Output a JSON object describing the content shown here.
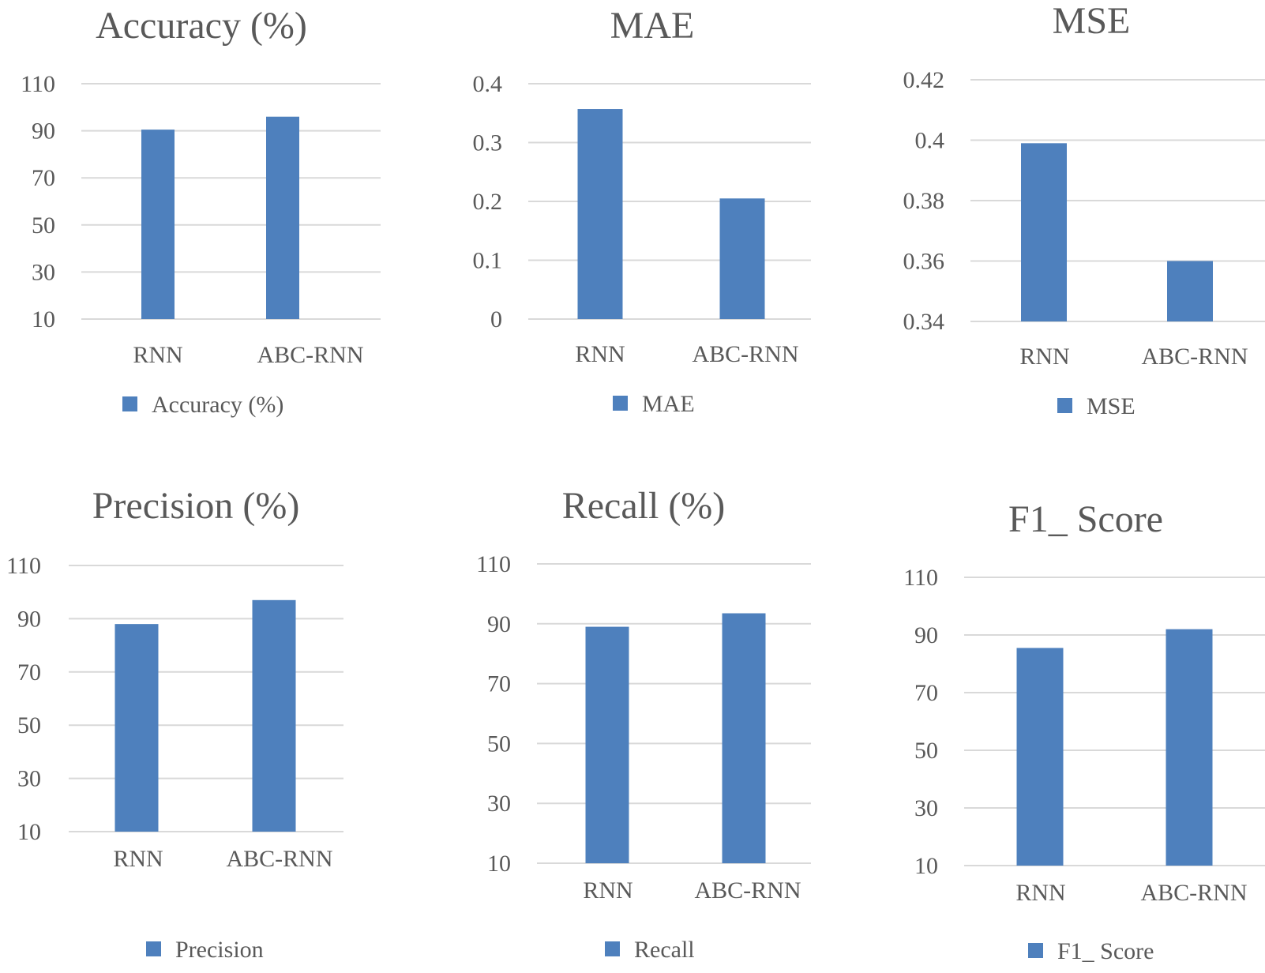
{
  "colors": {
    "bar": "#4e80bd",
    "grid": "#d9d9d9",
    "text": "#595959"
  },
  "chart_data": [
    {
      "type": "bar",
      "title": "Accuracy (%)",
      "categories": [
        "RNN",
        "ABC-RNN"
      ],
      "values": [
        90.5,
        96
      ],
      "ylim": [
        10,
        110
      ],
      "ticks": [
        10,
        30,
        50,
        70,
        90,
        110
      ],
      "tick_labels": [
        "10",
        "30",
        "50",
        "70",
        "90",
        "110"
      ],
      "legend": "Accuracy (%)",
      "xlabel": "",
      "ylabel": ""
    },
    {
      "type": "bar",
      "title": "MAE",
      "categories": [
        "RNN",
        "ABC-RNN"
      ],
      "values": [
        0.357,
        0.205
      ],
      "ylim": [
        0,
        0.4
      ],
      "ticks": [
        0,
        0.1,
        0.2,
        0.3,
        0.4
      ],
      "tick_labels": [
        "0",
        "0.1",
        "0.2",
        "0.3",
        "0.4"
      ],
      "legend": "MAE",
      "xlabel": "",
      "ylabel": ""
    },
    {
      "type": "bar",
      "title": "MSE",
      "categories": [
        "RNN",
        "ABC-RNN"
      ],
      "values": [
        0.399,
        0.36
      ],
      "ylim": [
        0.34,
        0.42
      ],
      "ticks": [
        0.34,
        0.36,
        0.38,
        0.4,
        0.42
      ],
      "tick_labels": [
        "0.34",
        "0.36",
        "0.38",
        "0.4",
        "0.42"
      ],
      "legend": "MSE",
      "xlabel": "",
      "ylabel": ""
    },
    {
      "type": "bar",
      "title": "Precision (%)",
      "categories": [
        "RNN",
        "ABC-RNN"
      ],
      "values": [
        88,
        97
      ],
      "ylim": [
        10,
        110
      ],
      "ticks": [
        10,
        30,
        50,
        70,
        90,
        110
      ],
      "tick_labels": [
        "10",
        "30",
        "50",
        "70",
        "90",
        "110"
      ],
      "legend": "Precision",
      "xlabel": "",
      "ylabel": ""
    },
    {
      "type": "bar",
      "title": "Recall (%)",
      "categories": [
        "RNN",
        "ABC-RNN"
      ],
      "values": [
        89,
        93.5
      ],
      "ylim": [
        10,
        110
      ],
      "ticks": [
        10,
        30,
        50,
        70,
        90,
        110
      ],
      "tick_labels": [
        "10",
        "30",
        "50",
        "70",
        "90",
        "110"
      ],
      "legend": "Recall",
      "xlabel": "",
      "ylabel": ""
    },
    {
      "type": "bar",
      "title": "F1_ Score",
      "categories": [
        "RNN",
        "ABC-RNN"
      ],
      "values": [
        85.5,
        92
      ],
      "ylim": [
        10,
        110
      ],
      "ticks": [
        10,
        30,
        50,
        70,
        90,
        110
      ],
      "tick_labels": [
        "10",
        "30",
        "50",
        "70",
        "90",
        "110"
      ],
      "legend": "F1_ Score",
      "xlabel": "",
      "ylabel": ""
    }
  ]
}
